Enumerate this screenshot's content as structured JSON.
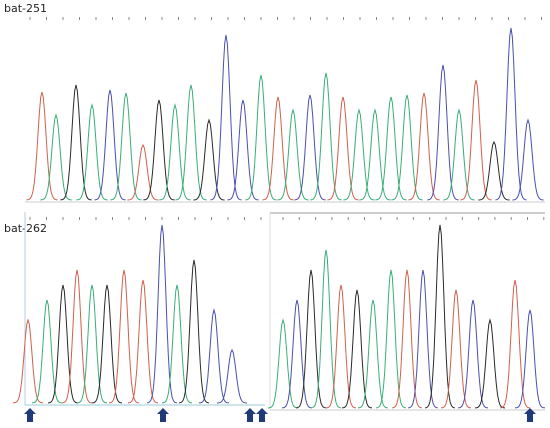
{
  "panels": [
    {
      "label": "bat-251"
    },
    {
      "label": "bat-262"
    }
  ]
}
